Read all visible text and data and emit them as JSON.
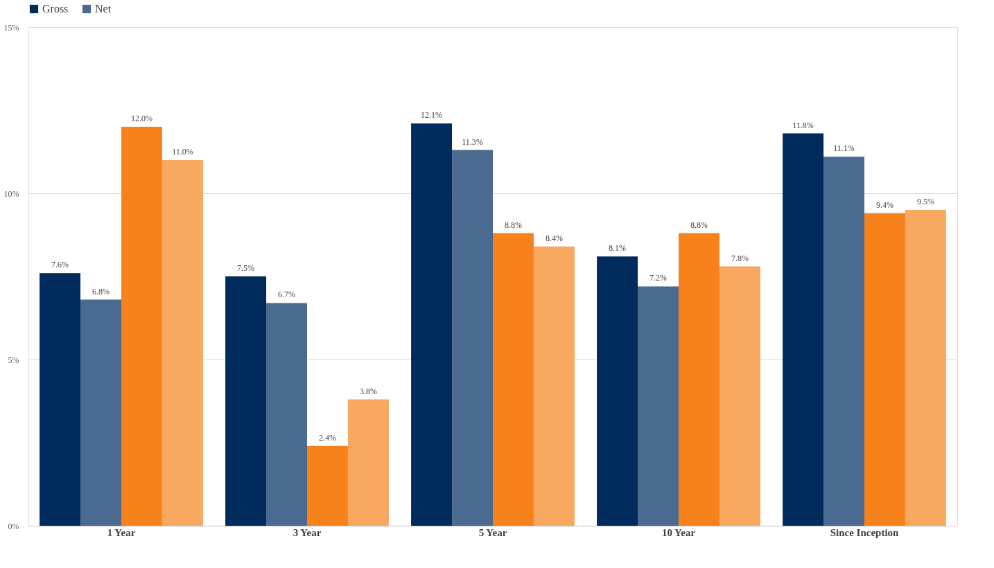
{
  "chart_data": {
    "type": "bar",
    "categories": [
      "1 Year",
      "3 Year",
      "5 Year",
      "10 Year",
      "Since Inception"
    ],
    "series": [
      {
        "name": "Gross",
        "color": "#002b5c",
        "values": [
          7.6,
          7.5,
          12.1,
          8.1,
          11.8
        ],
        "value_labels": [
          "7.6%",
          "7.5%",
          "12.1%",
          "8.1%",
          "11.8%"
        ]
      },
      {
        "name": "Net",
        "color": "#4b6a8f",
        "values": [
          6.8,
          6.7,
          11.3,
          7.2,
          11.1
        ],
        "value_labels": [
          "6.8%",
          "6.7%",
          "11.3%",
          "7.2%",
          "11.1%"
        ]
      },
      {
        "color": "#f7821c",
        "values": [
          12.0,
          2.4,
          8.8,
          8.8,
          9.4
        ],
        "value_labels": [
          "12.0%",
          "2.4%",
          "8.8%",
          "8.8%",
          "9.4%"
        ]
      },
      {
        "color": "#f9a85f",
        "values": [
          11.0,
          3.8,
          8.4,
          7.8,
          9.5
        ],
        "value_labels": [
          "11.0%",
          "3.8%",
          "8.4%",
          "7.8%",
          "9.5%"
        ]
      }
    ],
    "ylim": [
      0,
      15
    ],
    "yticks": [
      {
        "value": 0,
        "label": "0%"
      },
      {
        "value": 5,
        "label": "5%"
      },
      {
        "value": 10,
        "label": "10%"
      },
      {
        "value": 15,
        "label": "15%"
      }
    ],
    "grid": "y",
    "legend": "top"
  }
}
